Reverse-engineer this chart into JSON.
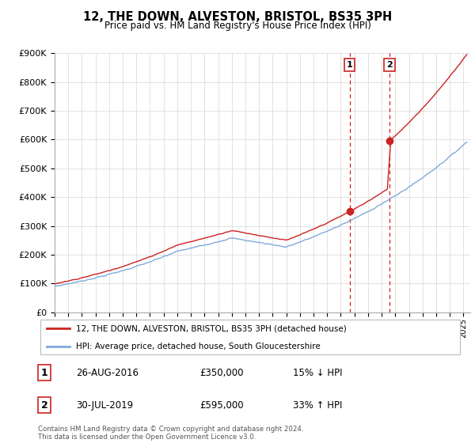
{
  "title": "12, THE DOWN, ALVESTON, BRISTOL, BS35 3PH",
  "subtitle": "Price paid vs. HM Land Registry's House Price Index (HPI)",
  "yticks": [
    0,
    100000,
    200000,
    300000,
    400000,
    500000,
    600000,
    700000,
    800000,
    900000
  ],
  "sale1_year": 2016.65,
  "sale1_price": 350000,
  "sale2_year": 2019.58,
  "sale2_price": 595000,
  "line_color_hpi": "#7eaadc",
  "line_color_paid": "#cc2222",
  "vline_color": "#cc2222",
  "legend_paid_label": "12, THE DOWN, ALVESTON, BRISTOL, BS35 3PH (detached house)",
  "legend_hpi_label": "HPI: Average price, detached house, South Gloucestershire",
  "table_row1": [
    "1",
    "26-AUG-2016",
    "£350,000",
    "15% ↓ HPI"
  ],
  "table_row2": [
    "2",
    "30-JUL-2019",
    "£595,000",
    "33% ↑ HPI"
  ],
  "footnote": "Contains HM Land Registry data © Crown copyright and database right 2024.\nThis data is licensed under the Open Government Licence v3.0.",
  "grid_color": "#dddddd"
}
